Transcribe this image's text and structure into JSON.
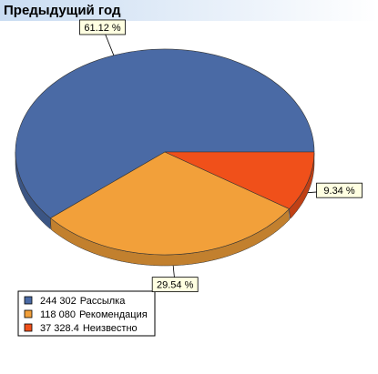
{
  "chart_data": {
    "type": "pie",
    "title": "Предыдущий год",
    "categories": [
      "Рассылка",
      "Рекомендация",
      "Неизвестно"
    ],
    "values": [
      61.12,
      29.54,
      9.34
    ],
    "value_labels": [
      "61.12 %",
      "29.54 %",
      "9.34 %"
    ],
    "amounts": [
      244302,
      118080,
      37328.4
    ],
    "amount_labels": [
      "244 302",
      "118 080",
      "37 328.4"
    ],
    "colors": [
      "#4a6aa5",
      "#f2a03a",
      "#f0501a"
    ]
  }
}
